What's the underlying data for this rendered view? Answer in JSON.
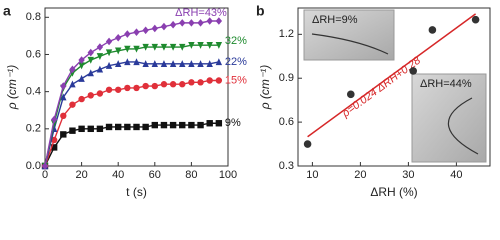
{
  "chart_data": [
    {
      "type": "line",
      "panel_label": "a",
      "xlabel": "t (s)",
      "ylabel": "ρ (cm⁻¹)",
      "x": [
        0,
        5,
        10,
        15,
        20,
        25,
        30,
        35,
        40,
        45,
        50,
        55,
        60,
        65,
        70,
        75,
        80,
        85,
        90,
        95
      ],
      "xlim": [
        0,
        100
      ],
      "xticks": [
        0,
        20,
        40,
        60,
        80,
        100
      ],
      "ylim": [
        0,
        0.85
      ],
      "yticks": [
        {
          "value": 0,
          "label": "0.0"
        },
        0.2,
        0.4,
        0.6,
        0.8
      ],
      "series": [
        {
          "name": "9%",
          "color": "#111111",
          "marker": "square",
          "values": [
            0,
            0.1,
            0.17,
            0.19,
            0.2,
            0.2,
            0.2,
            0.21,
            0.21,
            0.21,
            0.21,
            0.21,
            0.22,
            0.22,
            0.22,
            0.22,
            0.22,
            0.22,
            0.23,
            0.23
          ]
        },
        {
          "name": "15%",
          "color": "#e0303a",
          "marker": "circle",
          "values": [
            0,
            0.14,
            0.27,
            0.33,
            0.36,
            0.38,
            0.39,
            0.41,
            0.41,
            0.42,
            0.42,
            0.43,
            0.43,
            0.44,
            0.44,
            0.44,
            0.45,
            0.45,
            0.46,
            0.46
          ]
        },
        {
          "name": "22%",
          "color": "#2a3a9a",
          "marker": "triangle",
          "values": [
            0,
            0.2,
            0.37,
            0.44,
            0.47,
            0.5,
            0.52,
            0.54,
            0.55,
            0.56,
            0.56,
            0.55,
            0.55,
            0.55,
            0.55,
            0.55,
            0.55,
            0.55,
            0.55,
            0.56
          ]
        },
        {
          "name": "32%",
          "color": "#1e8a2e",
          "marker": "down-triangle",
          "values": [
            0,
            0.23,
            0.42,
            0.5,
            0.54,
            0.57,
            0.59,
            0.61,
            0.62,
            0.63,
            0.63,
            0.64,
            0.64,
            0.64,
            0.64,
            0.64,
            0.65,
            0.65,
            0.65,
            0.65
          ]
        },
        {
          "name": "ΔRH=43%",
          "color": "#8a3fb0",
          "marker": "diamond",
          "values": [
            0,
            0.25,
            0.43,
            0.52,
            0.57,
            0.61,
            0.64,
            0.67,
            0.69,
            0.71,
            0.72,
            0.73,
            0.74,
            0.75,
            0.76,
            0.77,
            0.77,
            0.77,
            0.78,
            0.78
          ]
        }
      ]
    },
    {
      "type": "scatter",
      "panel_label": "b",
      "xlabel": "ΔRH (%)",
      "ylabel": "ρ (cm⁻¹)",
      "x": [
        9,
        18,
        31,
        35,
        44
      ],
      "values": [
        0.45,
        0.79,
        0.95,
        1.23,
        1.3
      ],
      "color": "#333333",
      "xlim": [
        7,
        47
      ],
      "xticks": [
        10,
        20,
        30,
        40
      ],
      "ylim": [
        0.3,
        1.38
      ],
      "yticks": [
        0.3,
        0.6,
        0.9,
        1.2
      ],
      "fit": {
        "x": [
          9,
          44
        ],
        "values": [
          0.5,
          1.34
        ],
        "color": "#d62728",
        "label": "ρ=0.024 ΔRH+0.28"
      },
      "insets": [
        {
          "label": "ΔRH=9%"
        },
        {
          "label": "ΔRH=44%"
        }
      ]
    }
  ]
}
